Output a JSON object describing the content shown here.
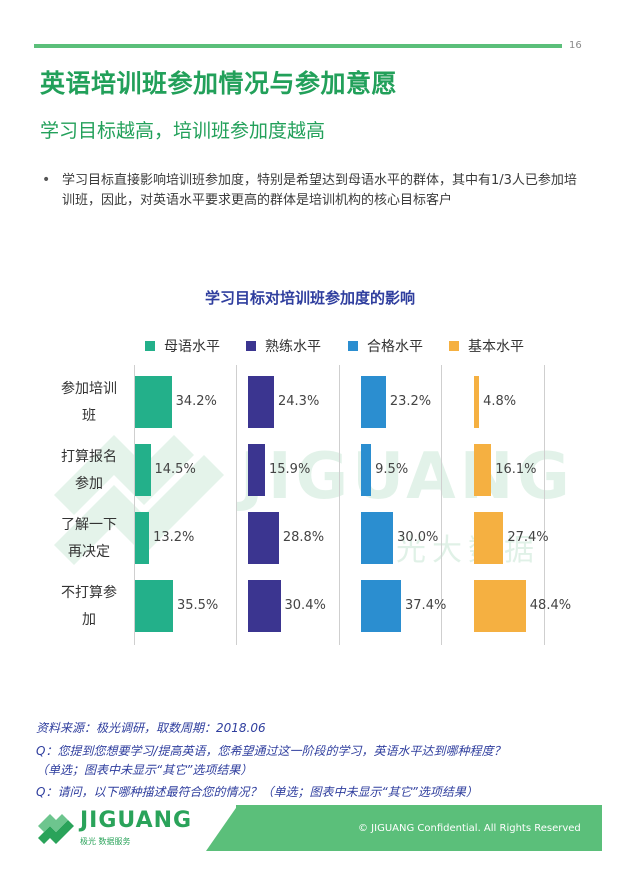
{
  "header": {
    "page_number": "16"
  },
  "title": "英语培训班参加情况与参加意愿",
  "subtitle": "学习目标越高，培训班参加度越高",
  "bullet": "学习目标直接影响培训班参加度，特别是希望达到母语水平的群体，其中有1/3人已参加培训班，因此，对英语水平要求更高的群体是培训机构的核心目标客户",
  "chart_data": {
    "type": "bar",
    "title": "学习目标对培训班参加度的影响",
    "categories": [
      "参加培训班",
      "打算报名参加",
      "了解一下再决定",
      "不打算参加"
    ],
    "series": [
      {
        "name": "母语水平",
        "color": "#23b08a",
        "values": [
          34.2,
          14.5,
          13.2,
          35.5
        ],
        "labels": [
          "34.2%",
          "14.5%",
          "13.2%",
          "35.5%"
        ]
      },
      {
        "name": "熟练水平",
        "color": "#3b3590",
        "values": [
          24.3,
          15.9,
          28.8,
          30.4
        ],
        "labels": [
          "24.3%",
          "15.9%",
          "28.8%",
          "30.4%"
        ]
      },
      {
        "name": "合格水平",
        "color": "#2b8ed0",
        "values": [
          23.2,
          9.5,
          30.0,
          37.4
        ],
        "labels": [
          "23.2%",
          "9.5%",
          "30.0%",
          "37.4%"
        ]
      },
      {
        "name": "基本水平",
        "color": "#f5b041",
        "values": [
          4.8,
          16.1,
          27.4,
          48.4
        ],
        "labels": [
          "4.8%",
          "16.1%",
          "27.4%",
          "48.4%"
        ]
      }
    ],
    "legend": "top"
  },
  "row_labels": [
    {
      "line1": "参加培训",
      "line2": "班"
    },
    {
      "line1": "打算报名",
      "line2": "参加"
    },
    {
      "line1": "了解一下",
      "line2": "再决定"
    },
    {
      "line1": "不打算参",
      "line2": "加"
    }
  ],
  "watermark": {
    "word": "JIGUANG",
    "cn": "极光大数据"
  },
  "notes": {
    "source": "资料来源：极光调研，取数周期：2018.06",
    "q1": "Q：您提到您想要学习/提高英语，您希望通过这一阶段的学习，英语水平达到哪种程度？",
    "q1_note": "（单选；图表中未显示“其它”选项结果）",
    "q2": "Q：请问，以下哪种描述最符合您的情况？（单选；图表中未显示“其它”选项结果）"
  },
  "footer": {
    "brand": "JIGUANG",
    "tagline": "极光 数据服务",
    "copyright": "© JIGUANG Confidential. All Rights Reserved"
  }
}
